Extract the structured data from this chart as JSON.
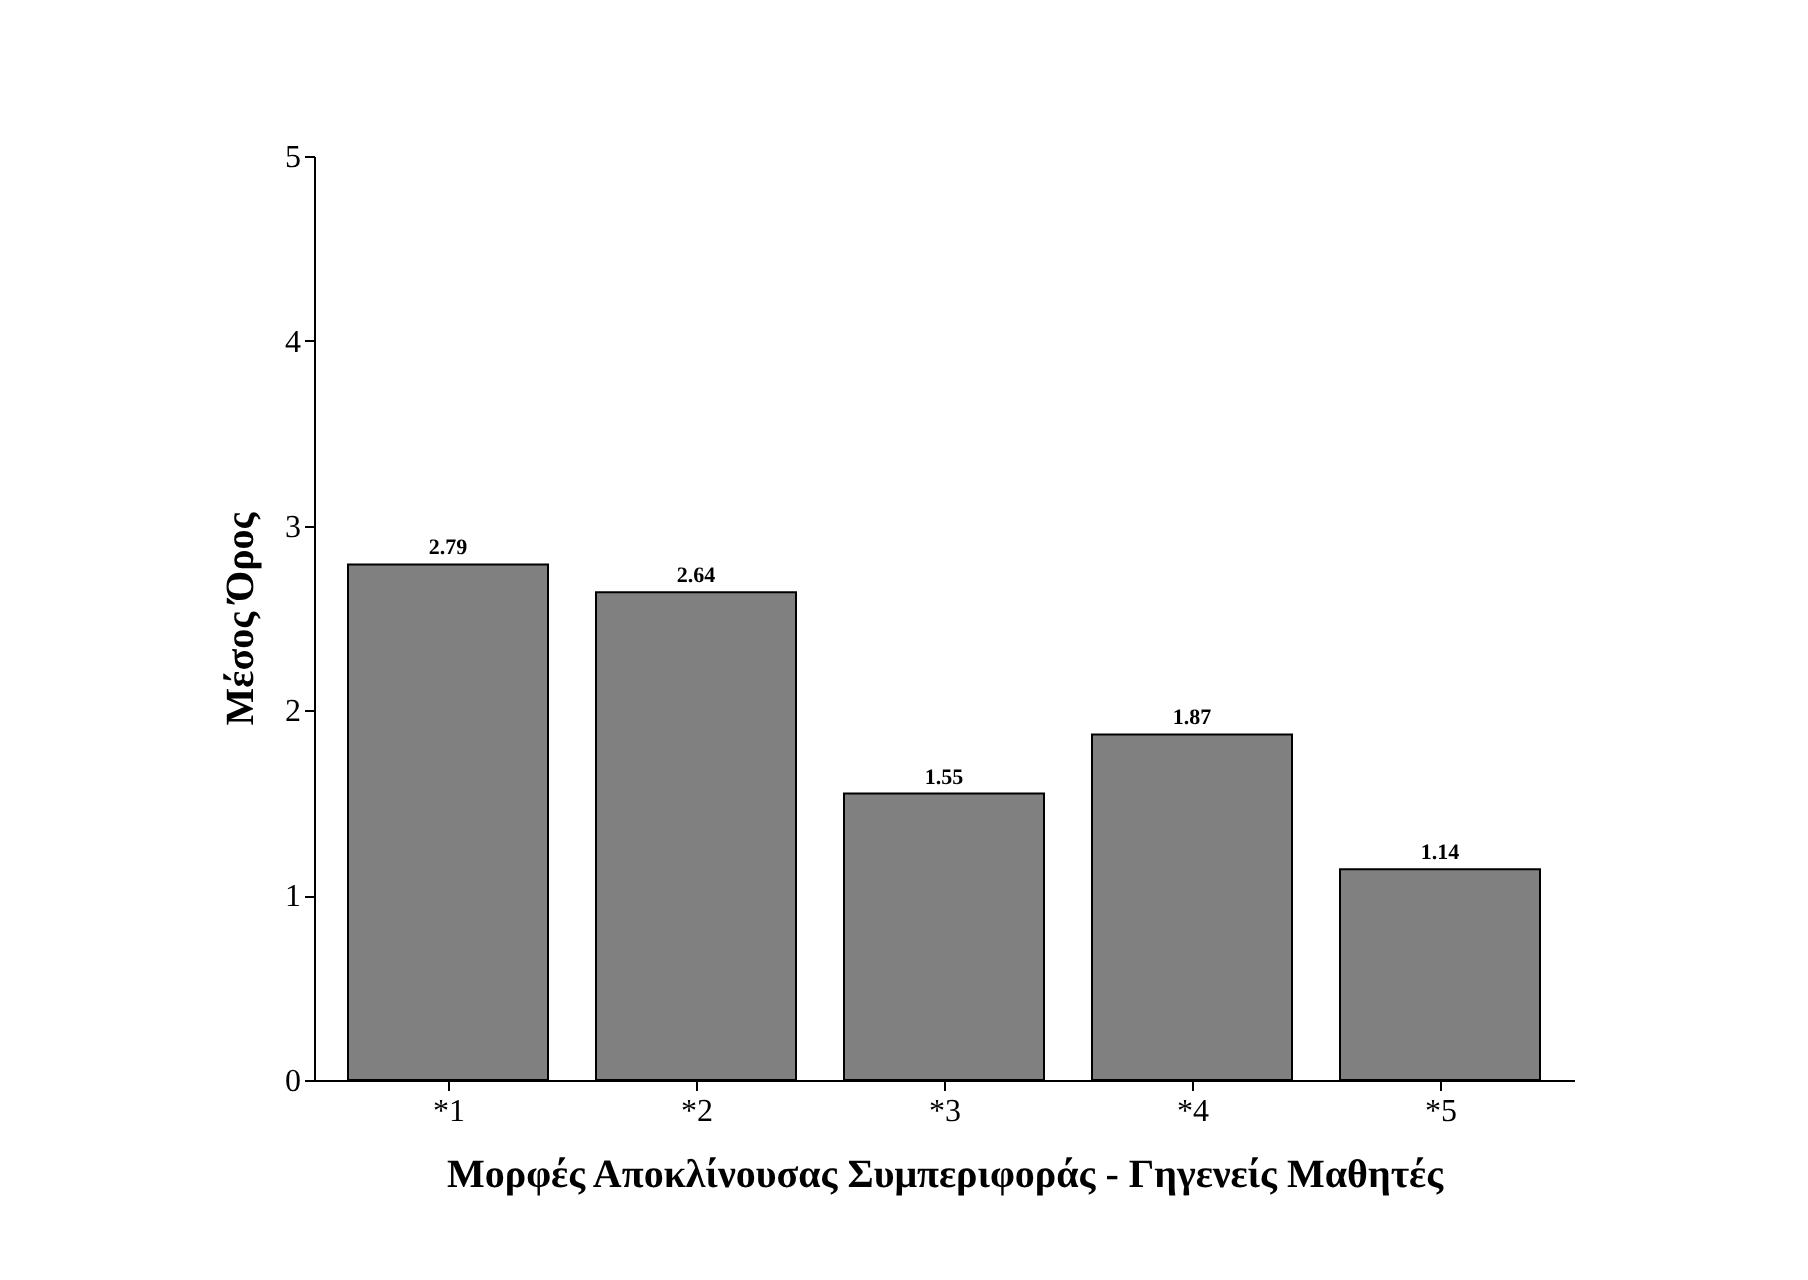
{
  "chart_data": {
    "type": "bar",
    "categories": [
      "*1",
      "*2",
      "*3",
      "*4",
      "*5"
    ],
    "values": [
      2.79,
      2.64,
      1.55,
      1.87,
      1.14
    ],
    "color": "#808080",
    "xlabel": "Μορφές Αποκλίνουσας Συμπεριφοράς - Γηγενείς Μαθητές",
    "ylabel": "Μέσος Όρος",
    "ylim": [
      0,
      5
    ],
    "yticks": [
      0,
      1,
      2,
      3,
      4,
      5
    ],
    "data_labels": true,
    "grid": false
  }
}
